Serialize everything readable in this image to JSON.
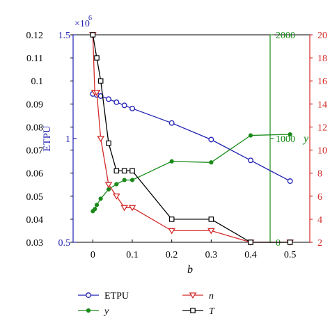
{
  "chart_data": {
    "type": "line",
    "xlabel": "b",
    "xlim": [
      -0.05,
      0.55
    ],
    "x_ticks": [
      0,
      0.1,
      0.2,
      0.3,
      0.4,
      0.5
    ],
    "x_tick_labels": [
      "0",
      "0.1",
      "0.2",
      "0.3",
      "0.4",
      "0.5"
    ],
    "axes": {
      "outer_left": {
        "range": [
          0.03,
          0.12
        ],
        "ticks": [
          0.03,
          0.04,
          0.05,
          0.06,
          0.07,
          0.08,
          0.09,
          0.1,
          0.11,
          0.12
        ],
        "tick_labels": [
          "0.03",
          "0.04",
          "0.05",
          "0.06",
          "0.07",
          "0.08",
          "0.09",
          "0.1",
          "0.11",
          "0.12"
        ],
        "color": "#000000"
      },
      "etpu": {
        "label": "ETPU",
        "range": [
          500000,
          1500000
        ],
        "ticks": [
          500000,
          1000000,
          1500000
        ],
        "tick_labels": [
          "0.5",
          "1",
          "1.5"
        ],
        "multiplier": "×10",
        "multiplier_exp": "6",
        "color": "#1f1fb4"
      },
      "y": {
        "label": "y",
        "range": [
          0,
          2000
        ],
        "ticks": [
          0,
          1000,
          2000
        ],
        "tick_labels": [
          "0",
          "1000",
          "2000"
        ],
        "color": "#1a8a1a"
      },
      "n": {
        "label": "",
        "range": [
          2,
          20
        ],
        "ticks": [
          2,
          4,
          6,
          8,
          10,
          12,
          14,
          16,
          18,
          20
        ],
        "tick_labels": [
          "2",
          "4",
          "6",
          "8",
          "10",
          "12",
          "14",
          "16",
          "18",
          "20"
        ],
        "color": "#d42a2a"
      }
    },
    "series": [
      {
        "name": "ETPU",
        "axis": "etpu",
        "marker": "circle",
        "color": "#1f1fb4",
        "x": [
          0,
          0.01,
          0.02,
          0.04,
          0.06,
          0.08,
          0.1,
          0.2,
          0.3,
          0.4,
          0.5
        ],
        "values": [
          1215000,
          1210000,
          1205000,
          1190000,
          1175000,
          1160000,
          1145000,
          1075000,
          995000,
          895000,
          795000
        ]
      },
      {
        "name": "y",
        "axis": "y",
        "marker": "dot",
        "color": "#1a8a1a",
        "x": [
          0,
          0.005,
          0.01,
          0.02,
          0.04,
          0.06,
          0.08,
          0.1,
          0.2,
          0.3,
          0.4,
          0.5
        ],
        "values": [
          300,
          320,
          360,
          420,
          510,
          560,
          600,
          600,
          780,
          770,
          1030,
          1040
        ]
      },
      {
        "name": "n",
        "axis": "n",
        "marker": "triangle-down",
        "color": "#d42a2a",
        "x": [
          0,
          0.005,
          0.01,
          0.02,
          0.04,
          0.06,
          0.08,
          0.1,
          0.2,
          0.3,
          0.4,
          0.5
        ],
        "values": [
          20,
          15,
          15,
          11,
          7,
          6,
          5,
          5,
          3,
          3,
          2,
          2
        ]
      },
      {
        "name": "T",
        "axis": "outer_left",
        "marker": "square",
        "color": "#000000",
        "x": [
          0,
          0.01,
          0.02,
          0.04,
          0.06,
          0.08,
          0.1,
          0.2,
          0.3,
          0.4,
          0.5
        ],
        "values": [
          0.12,
          0.11,
          0.1,
          0.073,
          0.061,
          0.061,
          0.061,
          0.04,
          0.04,
          0.03,
          0.03
        ]
      }
    ],
    "legend_placement": "bottom",
    "grid": false
  }
}
